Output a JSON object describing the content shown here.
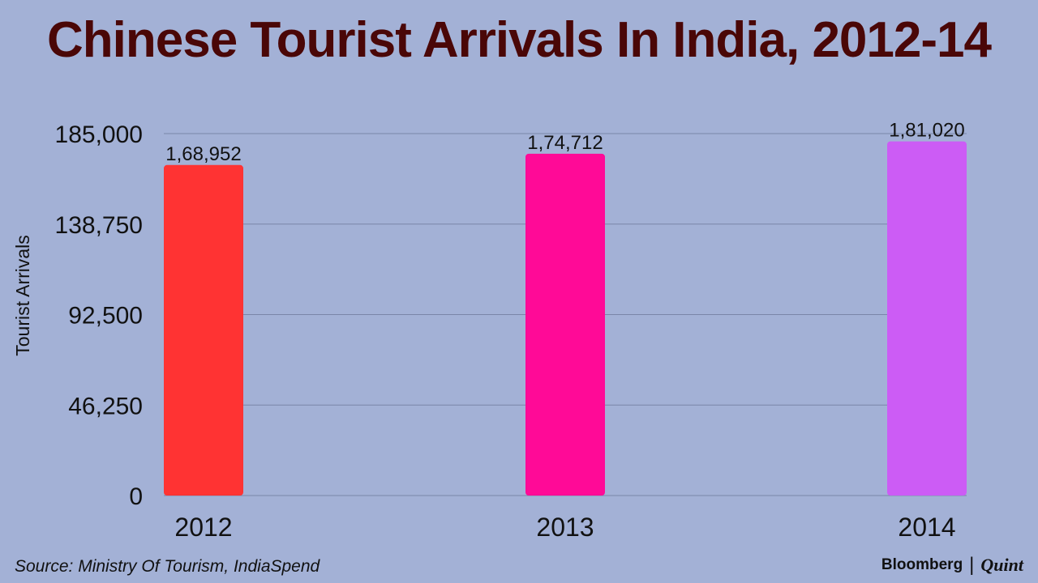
{
  "title": "Chinese Tourist Arrivals In India, 2012-14",
  "source": "Source: Ministry Of Tourism, IndiaSpend",
  "brand": {
    "primary": "Bloomberg",
    "separator": "|",
    "secondary": "Quint"
  },
  "colors": {
    "background": "#a3b1d6",
    "title": "#4a0707",
    "gridline": "#7a86a8"
  },
  "chart_data": {
    "type": "bar",
    "title": "Chinese Tourist Arrivals In India, 2012-14",
    "xlabel": "",
    "ylabel": "Tourist Arrivals",
    "categories": [
      "2012",
      "2013",
      "2014"
    ],
    "values": [
      168952,
      174712,
      181020
    ],
    "value_labels": [
      "1,68,952",
      "1,74,712",
      "1,81,020"
    ],
    "bar_colors": [
      "#ff3333",
      "#ff0a97",
      "#cc5cf5"
    ],
    "ylim": [
      0,
      185000
    ],
    "yticks": [
      0,
      46250,
      92500,
      138750,
      185000
    ],
    "ytick_labels": [
      "0",
      "46,250",
      "92,500",
      "138,750",
      "185,000"
    ],
    "grid": true,
    "legend": "none"
  }
}
